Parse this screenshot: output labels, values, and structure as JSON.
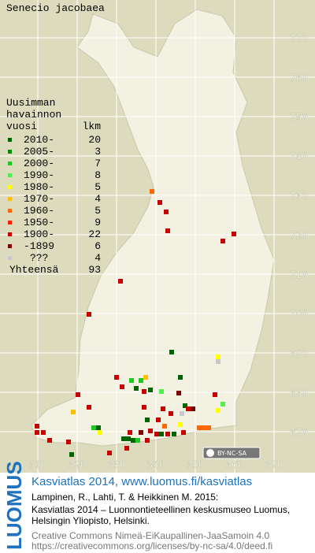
{
  "title": "Senecio jacobaea",
  "legend": {
    "heading": [
      "Uusimman",
      "havainnon"
    ],
    "year_header": "vuosi",
    "count_header": "lkm",
    "items": [
      {
        "label": "2010-",
        "count": 20,
        "color": "#006400"
      },
      {
        "label": "2005-",
        "count": 3,
        "color": "#008c00"
      },
      {
        "label": "2000-",
        "count": 7,
        "color": "#1ec81e"
      },
      {
        "label": "1990-",
        "count": 8,
        "color": "#50f050"
      },
      {
        "label": "1980-",
        "count": 5,
        "color": "#ffff00"
      },
      {
        "label": "1970-",
        "count": 4,
        "color": "#ffc000"
      },
      {
        "label": "1960-",
        "count": 5,
        "color": "#ff6a00"
      },
      {
        "label": "1950-",
        "count": 9,
        "color": "#ff2000"
      },
      {
        "label": "1900-",
        "count": 22,
        "color": "#c80000"
      },
      {
        "label": "-1899",
        "count": 6,
        "color": "#800000"
      },
      {
        "label": "???",
        "count": 4,
        "color": "#c8c8c8"
      }
    ],
    "total": {
      "label": "Yhteensä",
      "count": 93
    }
  },
  "grid": {
    "y_labels": [
      770,
      760,
      750,
      740,
      730,
      720,
      710,
      700,
      690,
      680,
      670
    ],
    "x_labels": [
      310,
      320,
      330,
      340,
      350,
      360,
      370
    ]
  },
  "license_badge": "BY-NC-SA",
  "footer": {
    "brand": "LUOMUS",
    "headline": "Kasviatlas 2014, www.luomus.fi/kasviatlas",
    "citation": [
      "Lampinen, R., Lahti, T. & Heikkinen M. 2015:",
      "Kasviatlas 2014 – Luonnontieteellinen keskusmuseo Luomus,",
      "Helsingin Yliopisto, Helsinki."
    ],
    "license": [
      "Creative Commons Nimeä-EiKaupallinen-JaaSamoin 4.0",
      "https://creativecommons.org/licenses/by-nc-sa/4.0/deed.fi"
    ]
  }
}
